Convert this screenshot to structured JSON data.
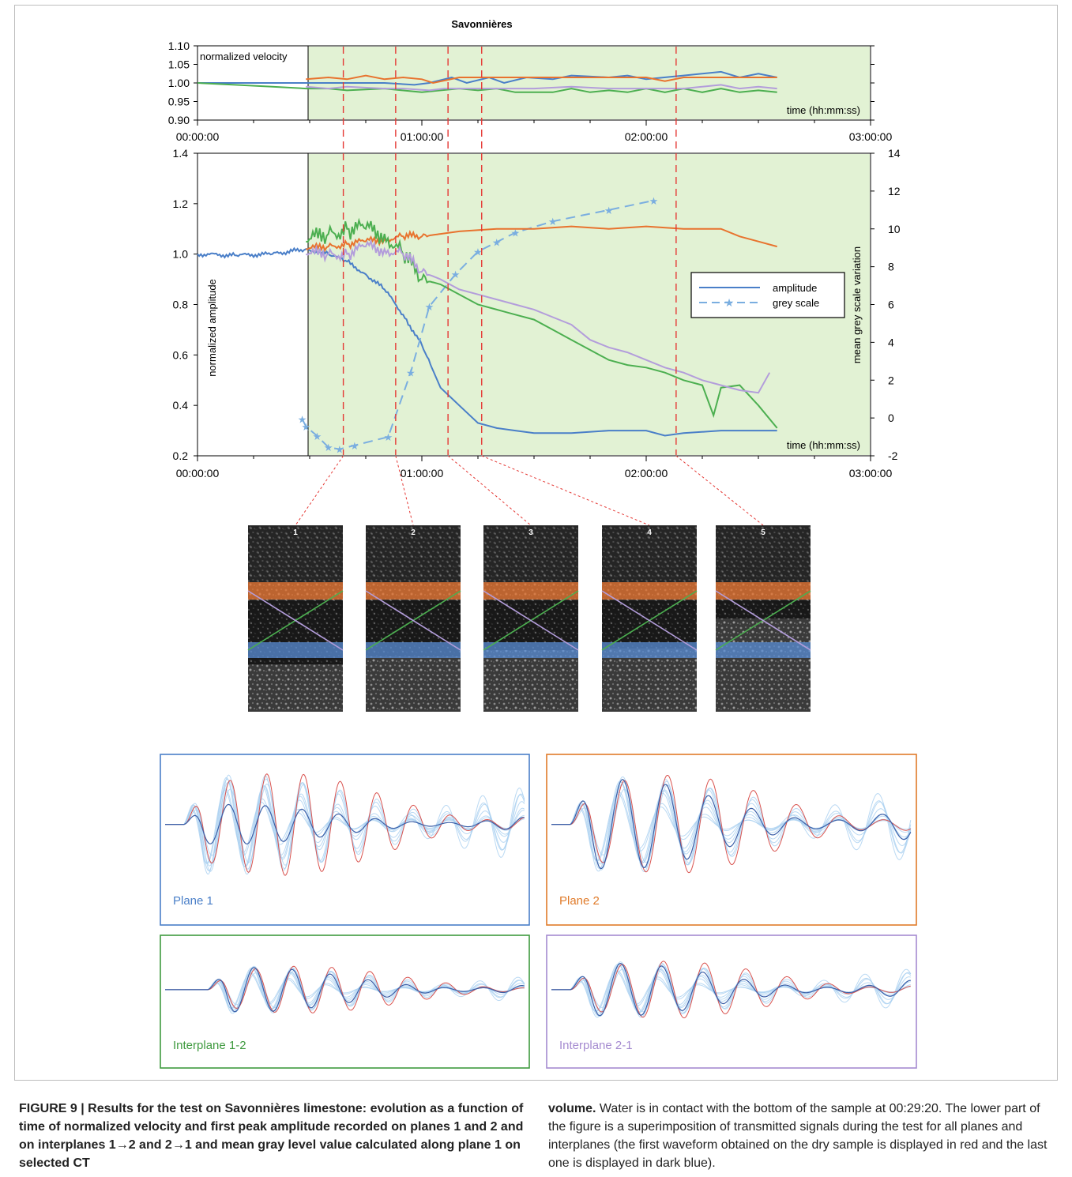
{
  "figure": {
    "title": "Savonnières",
    "top_chart": {
      "ylabel": "normalized velocity",
      "xlabel": "time (hh:mm:ss)",
      "yticks": [
        "1.10",
        "1.05",
        "1.00",
        "0.95",
        "0.90"
      ],
      "xticks": [
        "00:00:00",
        "01:00:00",
        "02:00:00",
        "03:00:00"
      ]
    },
    "main_chart": {
      "ylabel_left": "normalized amplitude",
      "ylabel_right": "mean grey scale variation",
      "xlabel": "time (hh:mm:ss)",
      "yticks_left": [
        "1.4",
        "1.2",
        "1.0",
        "0.8",
        "0.6",
        "0.4",
        "0.2"
      ],
      "yticks_right": [
        "14",
        "12",
        "10",
        "8",
        "6",
        "4",
        "2",
        "0",
        "-2"
      ],
      "xticks": [
        "00:00:00",
        "01:00:00",
        "02:00:00",
        "03:00:00"
      ],
      "legend": [
        "amplitude",
        "grey scale"
      ]
    },
    "ct_images": [
      "1",
      "2",
      "3",
      "4",
      "5"
    ],
    "waveform_panels": [
      {
        "label": "Plane 1",
        "color": "#4a7fc8"
      },
      {
        "label": "Plane 2",
        "color": "#e07b2a"
      },
      {
        "label": "Interplane 1-2",
        "color": "#3f9a3f"
      },
      {
        "label": "Interplane 2-1",
        "color": "#a58bd0"
      }
    ]
  },
  "chart_data": [
    {
      "type": "line",
      "title": "Savonnières",
      "xlabel": "time (hh:mm:ss)",
      "ylabel": "normalized velocity",
      "xlim": [
        0,
        180
      ],
      "ylim": [
        0.9,
        1.1
      ],
      "x_units": "minutes",
      "water_contact_start": 29.33,
      "ct_times": [
        39,
        53,
        67,
        76,
        128
      ],
      "series": [
        {
          "color": "#4a7fc8",
          "x": [
            0,
            29,
            35,
            40,
            50,
            58,
            62,
            68,
            72,
            78,
            82,
            88,
            95,
            100,
            110,
            115,
            120,
            130,
            140,
            145,
            150,
            155
          ],
          "y": [
            1.0,
            1.0,
            1.0,
            1.0,
            1.0,
            0.995,
            1.0,
            1.015,
            1.0,
            1.015,
            1.0,
            1.015,
            1.01,
            1.02,
            1.015,
            1.02,
            1.01,
            1.02,
            1.03,
            1.015,
            1.025,
            1.015
          ]
        },
        {
          "color": "#e8732e",
          "x": [
            29,
            35,
            40,
            45,
            50,
            55,
            60,
            63,
            70,
            80,
            90,
            100,
            110,
            120,
            125,
            130,
            140,
            150,
            155
          ],
          "y": [
            1.01,
            1.015,
            1.01,
            1.02,
            1.01,
            1.015,
            1.01,
            1.0,
            1.015,
            1.015,
            1.015,
            1.015,
            1.015,
            1.015,
            1.005,
            1.015,
            1.015,
            1.015,
            1.015
          ]
        },
        {
          "color": "#4caf50",
          "x": [
            0,
            10,
            20,
            29,
            35,
            40,
            50,
            60,
            65,
            70,
            75,
            80,
            85,
            90,
            95,
            100,
            105,
            110,
            115,
            120,
            125,
            130,
            135,
            140,
            145,
            150,
            155
          ],
          "y": [
            1.0,
            0.995,
            0.99,
            0.985,
            0.985,
            0.98,
            0.985,
            0.975,
            0.98,
            0.985,
            0.98,
            0.985,
            0.975,
            0.975,
            0.975,
            0.985,
            0.975,
            0.98,
            0.975,
            0.985,
            0.975,
            0.985,
            0.975,
            0.985,
            0.975,
            0.98,
            0.975
          ]
        },
        {
          "color": "#b39ddb",
          "x": [
            29,
            35,
            40,
            50,
            55,
            62,
            66,
            70,
            80,
            90,
            100,
            110,
            120,
            130,
            140,
            145,
            150,
            155
          ],
          "y": [
            0.99,
            0.985,
            0.99,
            0.985,
            0.985,
            0.98,
            0.985,
            0.985,
            0.985,
            0.985,
            0.99,
            0.985,
            0.985,
            0.985,
            0.995,
            0.985,
            0.99,
            0.985
          ]
        }
      ]
    },
    {
      "type": "line",
      "xlabel": "time (hh:mm:ss)",
      "ylabel": "normalized amplitude",
      "y2label": "mean grey scale variation",
      "xlim": [
        0,
        180
      ],
      "ylim": [
        0.2,
        1.4
      ],
      "y2lim": [
        -2,
        14
      ],
      "x_units": "minutes",
      "legend_position": "right",
      "series": [
        {
          "name": "amplitude",
          "color": "#4a7fc8",
          "x": [
            0,
            10,
            20,
            29,
            35,
            40,
            45,
            50,
            55,
            60,
            65,
            70,
            75,
            80,
            85,
            90,
            100,
            110,
            120,
            125,
            130,
            140,
            150,
            155
          ],
          "y": [
            1.0,
            0.995,
            1.0,
            1.02,
            1.0,
            0.97,
            0.92,
            0.86,
            0.76,
            0.64,
            0.47,
            0.4,
            0.33,
            0.31,
            0.3,
            0.29,
            0.29,
            0.3,
            0.3,
            0.28,
            0.29,
            0.3,
            0.3,
            0.3
          ]
        },
        {
          "name": "grey scale",
          "axis": "right",
          "color": "#7aaee0",
          "x": [
            28,
            29,
            32,
            35,
            38,
            42,
            51,
            57,
            62,
            69,
            75,
            80,
            85,
            95,
            110,
            122
          ],
          "y": [
            -0.05,
            -0.45,
            -0.95,
            -1.55,
            -1.65,
            -1.45,
            -1.0,
            2.4,
            5.9,
            7.6,
            8.8,
            9.3,
            9.8,
            10.4,
            11.0,
            11.5
          ]
        },
        {
          "color": "#e8732e",
          "x": [
            29,
            35,
            40,
            45,
            50,
            55,
            60,
            65,
            70,
            80,
            90,
            100,
            110,
            120,
            130,
            140,
            145,
            150,
            155
          ],
          "y": [
            1.02,
            1.03,
            1.04,
            1.05,
            1.06,
            1.07,
            1.07,
            1.08,
            1.09,
            1.1,
            1.1,
            1.11,
            1.1,
            1.11,
            1.1,
            1.1,
            1.07,
            1.05,
            1.03
          ]
        },
        {
          "color": "#4caf50",
          "x": [
            29,
            35,
            40,
            45,
            50,
            55,
            60,
            65,
            70,
            75,
            80,
            85,
            90,
            95,
            100,
            105,
            110,
            115,
            120,
            125,
            130,
            135,
            138,
            140,
            145,
            150,
            155
          ],
          "y": [
            1.05,
            1.08,
            1.1,
            1.1,
            1.08,
            1.0,
            0.9,
            0.88,
            0.84,
            0.8,
            0.78,
            0.76,
            0.74,
            0.7,
            0.66,
            0.62,
            0.58,
            0.56,
            0.55,
            0.53,
            0.5,
            0.48,
            0.36,
            0.47,
            0.48,
            0.4,
            0.31
          ]
        },
        {
          "color": "#b39ddb",
          "x": [
            29,
            35,
            40,
            45,
            50,
            55,
            60,
            65,
            70,
            75,
            80,
            85,
            90,
            95,
            100,
            105,
            110,
            115,
            120,
            125,
            130,
            135,
            140,
            145,
            150,
            153
          ],
          "y": [
            1.0,
            1.0,
            1.0,
            1.03,
            1.02,
            1.0,
            0.93,
            0.9,
            0.86,
            0.84,
            0.82,
            0.8,
            0.78,
            0.75,
            0.72,
            0.66,
            0.63,
            0.61,
            0.58,
            0.55,
            0.53,
            0.5,
            0.48,
            0.46,
            0.45,
            0.53
          ]
        }
      ]
    }
  ],
  "caption": {
    "label": "FIGURE 9 | Results for the test on Savonnières limestone: evolution as a function of time of normalized velocity and first peak amplitude recorded on planes 1 and 2 and on interplanes 1→2 and 2→1 and mean gray level value calculated along plane 1 on selected CT volume.",
    "bold_left": "FIGURE 9 | Results for the test on Savonnières limestone: evolution as a function of time of normalized velocity and first peak amplitude recorded on planes 1 and 2 and on interplanes 1→2 and 2→1 and mean gray level value calculated along plane 1 on selected CT",
    "bold_right": "volume.",
    "text_right": " Water is in contact with the bottom of the sample at 00:29:20. The lower part of the figure is a superimposition of transmitted signals during the test for all planes and interplanes (the first waveform obtained on the dry sample is displayed in red and the last one is displayed in dark blue)."
  }
}
